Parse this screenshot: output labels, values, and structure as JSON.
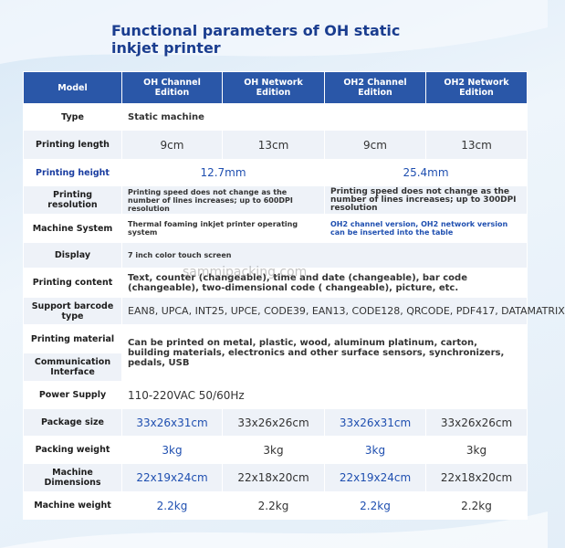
{
  "title": "Functional parameters of OH static inkjet printer",
  "watermark": "sammipacking.com",
  "table": {
    "header": [
      "Model",
      "OH Channel Edition",
      "OH Network Edition",
      "OH2 Channel Edition",
      "OH2 Network Edition"
    ],
    "rows": [
      {
        "label": "Type",
        "cells": [
          "Static machine"
        ]
      },
      {
        "label": "Printing length",
        "cells": [
          "9cm",
          "13cm",
          "9cm",
          "13cm"
        ]
      },
      {
        "label": "Printing height",
        "cells": [
          "12.7mm",
          "25.4mm"
        ]
      },
      {
        "label": "Printing resolution",
        "cells": [
          "Printing speed does not change as the number of lines increases; up to 600DPI resolution",
          "Printing speed does not change as the number of lines increases; up to 300DPI resolution"
        ]
      },
      {
        "label": "Machine System",
        "cells": [
          "Thermal foaming inkjet printer operating system",
          "OH2 channel version, OH2 network version can be inserted into the table"
        ]
      },
      {
        "label": "Display",
        "cells": [
          "7 inch color touch screen"
        ]
      },
      {
        "label": "Printing content",
        "cells": [
          "Text, counter (changeable), time and date (changeable), bar code (changeable), two-dimensional code ( changeable), picture, etc."
        ]
      },
      {
        "label": "Support barcode type",
        "cells": [
          "EAN8, UPCA, INT25, UPCE, CODE39, EAN13, CODE128, QRCODE, PDF417, DATAMATRIX"
        ]
      },
      {
        "label": "Printing material",
        "cells": [
          "Can be printed on metal, plastic, wood, aluminum platinum, carton, building materials, electronics and other surface sensors, synchronizers, pedals, USB"
        ]
      },
      {
        "label": "Communication Interface",
        "cells": []
      },
      {
        "label": "Power Supply",
        "cells": [
          "110-220VAC  50/60Hz"
        ]
      },
      {
        "label": "Package size",
        "cells": [
          "33x26x31cm",
          "33x26x26cm",
          "33x26x31cm",
          "33x26x26cm"
        ]
      },
      {
        "label": "Packing weight",
        "cells": [
          "3kg",
          "3kg",
          "3kg",
          "3kg"
        ]
      },
      {
        "label": "Machine Dimensions",
        "cells": [
          "22x19x24cm",
          "22x18x20cm",
          "22x19x24cm",
          "22x18x20cm"
        ]
      },
      {
        "label": "Machine weight",
        "cells": [
          "2.2kg",
          "2.2kg",
          "2.2kg",
          "2.2kg"
        ]
      }
    ]
  }
}
